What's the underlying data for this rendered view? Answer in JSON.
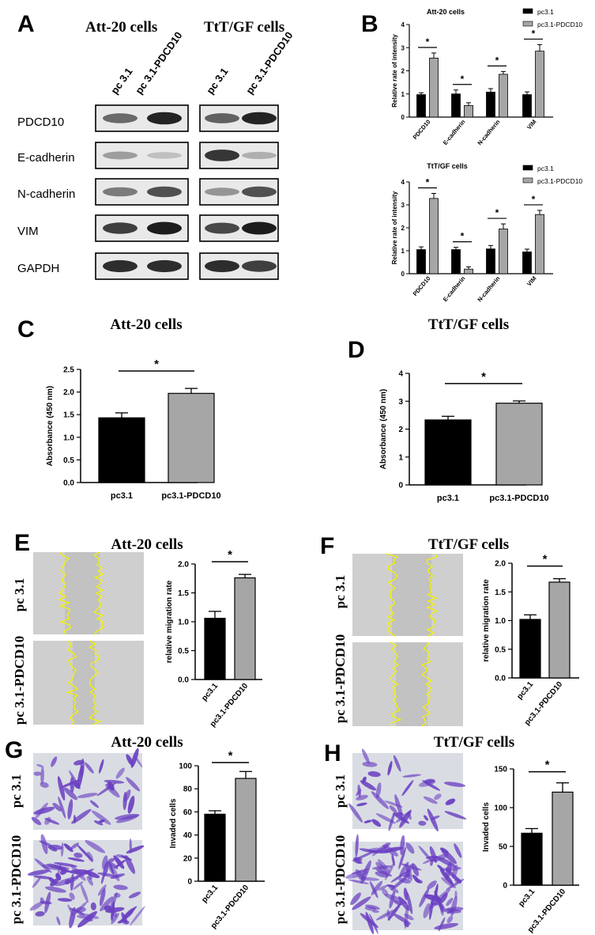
{
  "panels": {
    "A": {
      "letter": "A",
      "title_left": "Att-20 cells",
      "title_right": "TtT/GF cells",
      "lanes": [
        "pc 3.1",
        "pc 3.1-PDCD10",
        "pc 3.1",
        "pc 3.1-PDCD10"
      ],
      "rows": [
        "PDCD10",
        "E-cadherin",
        "N-cadherin",
        "VIM",
        "GAPDH"
      ]
    },
    "B": {
      "letter": "B"
    },
    "C": {
      "letter": "C",
      "title": "Att-20 cells"
    },
    "D": {
      "letter": "D",
      "title": "TtT/GF cells"
    },
    "E": {
      "letter": "E",
      "title": "Att-20 cells",
      "row_labels": [
        "pc 3.1",
        "pc 3.1-PDCD10"
      ]
    },
    "F": {
      "letter": "F",
      "title": "TtT/GF cells",
      "row_labels": [
        "pc 3.1",
        "pc 3.1-PDCD10"
      ]
    },
    "G": {
      "letter": "G",
      "title": "Att-20 cells",
      "row_labels": [
        "pc 3.1",
        "pc 3.1-PDCD10"
      ]
    },
    "H": {
      "letter": "H",
      "title": "TtT/GF cells",
      "row_labels": [
        "pc 3.1",
        "pc 3.1-PDCD10"
      ]
    }
  },
  "colors": {
    "black_bar": "#000000",
    "gray_bar": "#a6a6a6",
    "scratch_line": "#f2f200",
    "stain": "#6a3fc2"
  },
  "chart_data": [
    {
      "id": "B-att",
      "type": "bar",
      "title": "Att-20 cells",
      "ylabel": "Relative rate of intensity",
      "categories": [
        "PDCD10",
        "E-cadherin",
        "N-cadherin",
        "VIM"
      ],
      "ylim": [
        0,
        4
      ],
      "yticks": [
        0,
        1,
        2,
        3,
        4
      ],
      "legend": [
        "pc3.1",
        "pc3.1-PDCD10"
      ],
      "legend_position": "top-right",
      "series": [
        {
          "name": "pc3.1",
          "values": [
            0.97,
            1.0,
            1.08,
            0.97
          ],
          "errors": [
            0.08,
            0.17,
            0.15,
            0.12
          ]
        },
        {
          "name": "pc3.1-PDCD10",
          "values": [
            2.55,
            0.5,
            1.85,
            2.85
          ],
          "errors": [
            0.22,
            0.12,
            0.12,
            0.28
          ]
        }
      ],
      "significance": [
        "*",
        "*",
        "*",
        "*"
      ]
    },
    {
      "id": "B-ttt",
      "type": "bar",
      "title": "TtT/GF cells",
      "ylabel": "Relative rate of intensity",
      "categories": [
        "PDCD10",
        "E-cadherin",
        "N-cadherin",
        "VIM"
      ],
      "ylim": [
        0,
        4
      ],
      "yticks": [
        0,
        1,
        2,
        3,
        4
      ],
      "legend": [
        "pc3.1",
        "pc3.1-PDCD10"
      ],
      "legend_position": "top-right",
      "series": [
        {
          "name": "pc3.1",
          "values": [
            1.05,
            1.05,
            1.08,
            0.95
          ],
          "errors": [
            0.12,
            0.1,
            0.15,
            0.12
          ]
        },
        {
          "name": "pc3.1-PDCD10",
          "values": [
            3.28,
            0.2,
            1.95,
            2.58
          ],
          "errors": [
            0.22,
            0.1,
            0.22,
            0.18
          ]
        }
      ],
      "significance": [
        "*",
        "*",
        "*",
        "*"
      ]
    },
    {
      "id": "C",
      "type": "bar",
      "ylabel": "Absorbance (450 nm)",
      "categories": [
        "pc3.1",
        "pc3.1-PDCD10"
      ],
      "ylim": [
        0,
        2.5
      ],
      "yticks": [
        "0.0",
        "0.5",
        "1.0",
        "1.5",
        "2.0",
        "2.5"
      ],
      "values": [
        1.43,
        1.97
      ],
      "errors": [
        0.11,
        0.11
      ],
      "significance": "*"
    },
    {
      "id": "D",
      "type": "bar",
      "ylabel": "Absorbance (450 nm)",
      "categories": [
        "pc3.1",
        "pc3.1-PDCD10"
      ],
      "ylim": [
        0,
        4
      ],
      "yticks": [
        "0",
        "1",
        "2",
        "3",
        "4"
      ],
      "values": [
        2.33,
        2.93
      ],
      "errors": [
        0.13,
        0.08
      ],
      "significance": "*"
    },
    {
      "id": "E",
      "type": "bar",
      "ylabel": "relative migration rate",
      "categories": [
        "pc3.1",
        "pc3.1-PDCD10"
      ],
      "ylim": [
        0,
        2
      ],
      "yticks": [
        "0.0",
        "0.5",
        "1.0",
        "1.5",
        "2.0"
      ],
      "values": [
        1.06,
        1.76
      ],
      "errors": [
        0.12,
        0.06
      ],
      "significance": "*"
    },
    {
      "id": "F",
      "type": "bar",
      "ylabel": "relative migration rate",
      "categories": [
        "pc3.1",
        "pc3.1-PDCD10"
      ],
      "ylim": [
        0,
        2
      ],
      "yticks": [
        "0.0",
        "0.5",
        "1.0",
        "1.5",
        "2.0"
      ],
      "values": [
        1.02,
        1.67
      ],
      "errors": [
        0.08,
        0.06
      ],
      "significance": "*"
    },
    {
      "id": "G",
      "type": "bar",
      "ylabel": "Invaded cells",
      "categories": [
        "pc3.1",
        "pc3.1-PDCD10"
      ],
      "ylim": [
        0,
        100
      ],
      "yticks": [
        "0",
        "20",
        "40",
        "60",
        "80",
        "100"
      ],
      "values": [
        58,
        89
      ],
      "errors": [
        3,
        6
      ],
      "significance": "*"
    },
    {
      "id": "H",
      "type": "bar",
      "ylabel": "Invaded cells",
      "categories": [
        "pc3.1",
        "pc3.1-PDCD10"
      ],
      "ylim": [
        0,
        150
      ],
      "yticks": [
        "0",
        "50",
        "100",
        "150"
      ],
      "values": [
        67,
        120
      ],
      "errors": [
        6,
        12
      ],
      "significance": "*"
    }
  ]
}
